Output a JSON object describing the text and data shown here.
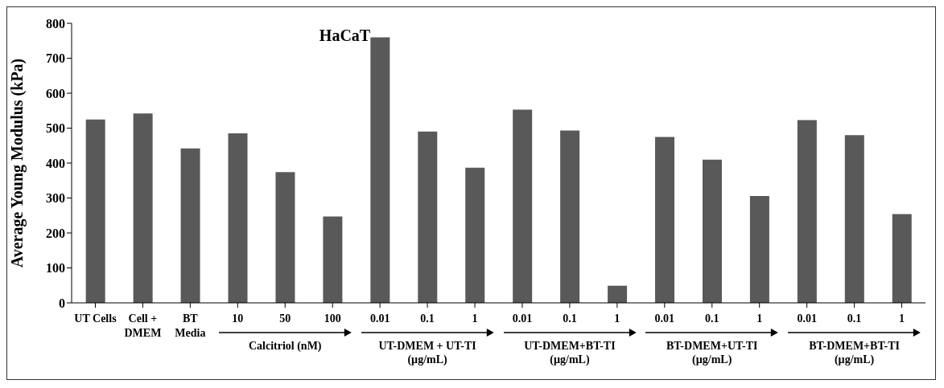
{
  "chart_data": {
    "type": "bar",
    "title": "HaCaT",
    "ylabel": "Average Young Modulus (kPa)",
    "categories": [
      "UT Cells",
      "Cell +\nDMEM",
      "BT\nMedia",
      "10",
      "50",
      "100",
      "0.01",
      "0.1",
      "1",
      "0.01",
      "0.1",
      "1",
      "0.01",
      "0.1",
      "1",
      "0.01",
      "0.1",
      "1"
    ],
    "values": [
      525,
      542,
      442,
      485,
      374,
      247,
      760,
      490,
      387,
      553,
      493,
      49,
      475,
      410,
      306,
      523,
      480,
      254
    ],
    "color": "#595959",
    "ylim": [
      0,
      800
    ],
    "yticks": [
      0,
      100,
      200,
      300,
      400,
      500,
      600,
      700,
      800
    ],
    "grid": false,
    "legend": false,
    "annotations": [
      "Calcitriol (nM)",
      "UT-DMEM + UT-TI\n(µg/mL)",
      "UT-DMEM+BT-TI\n(µg/mL)",
      "BT-DMEM+UT-TI\n(µg/mL)",
      "BT-DMEM+BT-TI\n(µg/mL)"
    ]
  }
}
